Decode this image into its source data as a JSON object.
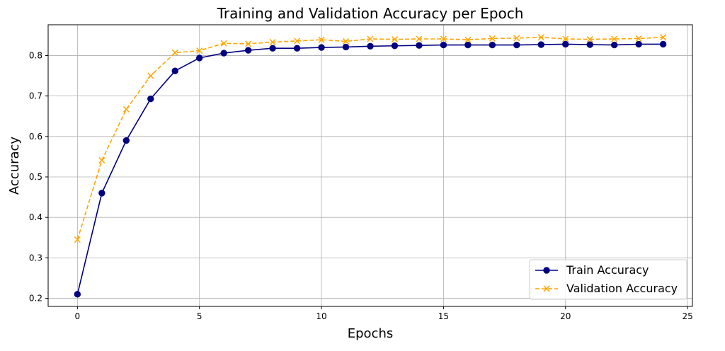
{
  "chart_data": {
    "type": "line",
    "title": "Training and Validation Accuracy per Epoch",
    "xlabel": "Epochs",
    "ylabel": "Accuracy",
    "xlim": [
      -1.2,
      25.2
    ],
    "ylim": [
      0.18,
      0.876
    ],
    "xticks": [
      0,
      5,
      10,
      15,
      20,
      25
    ],
    "yticks": [
      0.2,
      0.3,
      0.4,
      0.5,
      0.6,
      0.7,
      0.8
    ],
    "grid": true,
    "legend_position": "bottom-right",
    "x": [
      0,
      1,
      2,
      3,
      4,
      5,
      6,
      7,
      8,
      9,
      10,
      11,
      12,
      13,
      14,
      15,
      16,
      17,
      18,
      19,
      20,
      21,
      22,
      23,
      24
    ],
    "series": [
      {
        "name": "Train Accuracy",
        "color": "#000080",
        "marker": "circle",
        "linestyle": "solid",
        "values": [
          0.21,
          0.46,
          0.59,
          0.693,
          0.762,
          0.794,
          0.806,
          0.813,
          0.818,
          0.818,
          0.82,
          0.821,
          0.823,
          0.824,
          0.825,
          0.826,
          0.826,
          0.826,
          0.826,
          0.827,
          0.828,
          0.827,
          0.826,
          0.828,
          0.828
        ]
      },
      {
        "name": "Validation Accuracy",
        "color": "#FFA500",
        "marker": "x",
        "linestyle": "dashed",
        "values": [
          0.345,
          0.541,
          0.667,
          0.75,
          0.807,
          0.812,
          0.83,
          0.829,
          0.833,
          0.836,
          0.839,
          0.835,
          0.841,
          0.84,
          0.841,
          0.841,
          0.839,
          0.842,
          0.843,
          0.845,
          0.841,
          0.84,
          0.841,
          0.842,
          0.845
        ]
      }
    ]
  }
}
